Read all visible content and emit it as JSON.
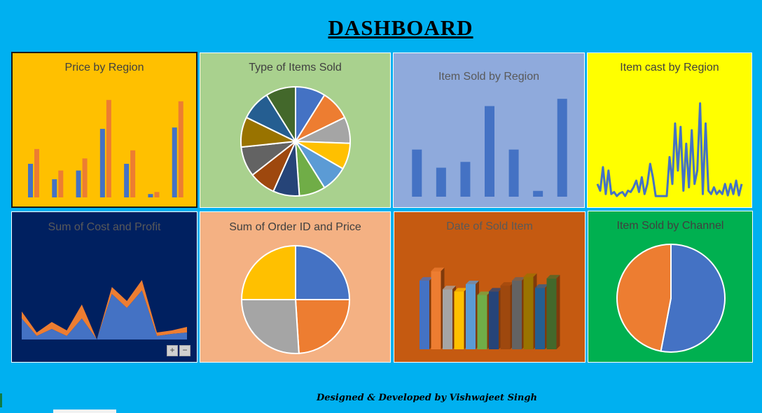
{
  "page_title": "DASHBOARD",
  "footer": "Designed & Developed by Vishwajeet Singh",
  "zoom": {
    "plus": "+",
    "minus": "−"
  },
  "chart_data": [
    {
      "type": "bar",
      "title": "Price by Region",
      "series_colors": [
        "#4472c4",
        "#ed7d31"
      ],
      "ylim": [
        0,
        150
      ],
      "series": [
        {
          "values": [
            50,
            27,
            40,
            102,
            50,
            5,
            104
          ]
        },
        {
          "values": [
            72,
            40,
            58,
            145,
            70,
            8,
            143
          ]
        }
      ]
    },
    {
      "type": "pie",
      "title": "Type of Items Sold",
      "values": [
        8,
        8,
        7,
        7,
        7,
        7,
        7,
        7,
        8,
        8,
        8,
        8
      ],
      "colors": [
        "#4472c4",
        "#ed7d31",
        "#a5a5a5",
        "#ffc000",
        "#5b9bd5",
        "#70ad47",
        "#264478",
        "#9e480e",
        "#636363",
        "#997300",
        "#255e91",
        "#43682b"
      ]
    },
    {
      "type": "bar",
      "title": "Item Sold by Region",
      "ylim": [
        0,
        140
      ],
      "values": [
        65,
        40,
        48,
        125,
        65,
        8,
        135
      ],
      "color": "#4472c4"
    },
    {
      "type": "line",
      "title": "Item cast by Region",
      "ylim": [
        0,
        150
      ],
      "values": [
        20,
        10,
        45,
        5,
        40,
        5,
        8,
        2,
        6,
        8,
        2,
        10,
        8,
        15,
        25,
        8,
        30,
        5,
        20,
        50,
        30,
        2,
        2,
        2,
        2,
        2,
        60,
        20,
        110,
        40,
        105,
        10,
        80,
        15,
        100,
        20,
        40,
        140,
        5,
        110,
        10,
        5,
        15,
        5,
        10,
        5,
        20,
        3,
        20,
        5,
        25,
        3,
        20
      ],
      "color": "#4472c4"
    },
    {
      "type": "area",
      "title": "Sum of Cost and Profit",
      "ylim": [
        0,
        100
      ],
      "series": [
        {
          "values": [
            30,
            5,
            15,
            5,
            30,
            0,
            65,
            45,
            70,
            5,
            8,
            10
          ],
          "color": "#4472c4"
        },
        {
          "values": [
            10,
            5,
            10,
            8,
            20,
            0,
            10,
            10,
            15,
            5,
            5,
            8
          ],
          "color": "#ed7d31"
        }
      ]
    },
    {
      "type": "pie",
      "title": "Sum of Order ID and Price",
      "values": [
        25,
        24,
        26,
        25
      ],
      "colors": [
        "#4472c4",
        "#ed7d31",
        "#a5a5a5",
        "#ffc000"
      ]
    },
    {
      "type": "bar",
      "title": "Date of Sold Item",
      "ylim": [
        0,
        120
      ],
      "values": [
        95,
        108,
        83,
        80,
        90,
        75,
        80,
        88,
        95,
        100,
        85,
        98
      ],
      "colors": [
        "#4472c4",
        "#ed7d31",
        "#a5a5a5",
        "#ffc000",
        "#5b9bd5",
        "#70ad47",
        "#264478",
        "#9e480e",
        "#636363",
        "#997300",
        "#255e91",
        "#43682b"
      ]
    },
    {
      "type": "pie",
      "title": "Item Sold by Channel",
      "values": [
        53,
        47
      ],
      "colors": [
        "#4472c4",
        "#ed7d31"
      ]
    }
  ]
}
